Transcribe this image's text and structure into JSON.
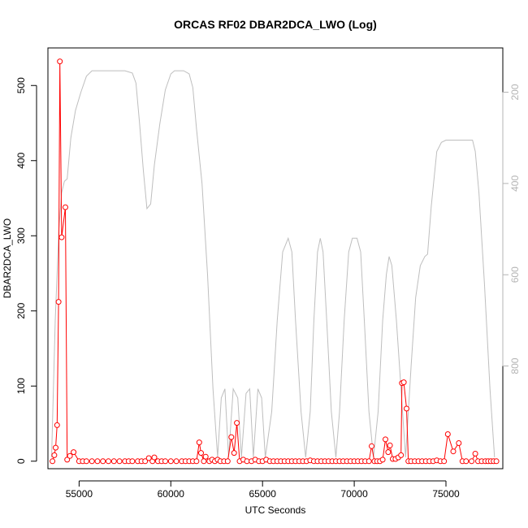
{
  "chart_data": {
    "type": "scatter",
    "title": "ORCAS RF02 DBAR2DCA_LWO (Log)",
    "xlabel": "UTC Seconds",
    "ylabel": "DBAR2DCA_LWO",
    "xlim": [
      53300,
      78100
    ],
    "ylim": [
      -10,
      550
    ],
    "x_ticks": [
      {
        "value": 55000,
        "label": "55000"
      },
      {
        "value": 60000,
        "label": "60000"
      },
      {
        "value": 65000,
        "label": "65000"
      },
      {
        "value": 70000,
        "label": "70000"
      },
      {
        "value": 75000,
        "label": "75000"
      }
    ],
    "y_ticks": [
      {
        "value": 0,
        "label": "0"
      },
      {
        "value": 100,
        "label": "100"
      },
      {
        "value": 200,
        "label": "200"
      },
      {
        "value": 300,
        "label": "300"
      },
      {
        "value": 400,
        "label": "400"
      },
      {
        "value": 500,
        "label": "500"
      }
    ],
    "y2lim": [
      1025,
      103
    ],
    "y2_ticks": [
      {
        "value": 200,
        "label": "200"
      },
      {
        "value": 400,
        "label": "400"
      },
      {
        "value": 600,
        "label": "600"
      },
      {
        "value": 800,
        "label": "800"
      }
    ],
    "colors": {
      "series": "#ff0000",
      "secondary": "#bebebe",
      "right_axis": "#b4b4b4",
      "frame": "#000000"
    },
    "series": [
      {
        "values": [
          [
            53550,
            0
          ],
          [
            53650,
            8
          ],
          [
            53720,
            18
          ],
          [
            53800,
            48
          ],
          [
            53880,
            212
          ],
          [
            53950,
            532
          ],
          [
            54050,
            298
          ],
          [
            54250,
            338
          ],
          [
            54350,
            2
          ],
          [
            54500,
            7
          ],
          [
            54700,
            12
          ],
          [
            55000,
            0
          ],
          [
            55200,
            0
          ],
          [
            55400,
            0
          ],
          [
            55700,
            0
          ],
          [
            56000,
            0
          ],
          [
            56300,
            0
          ],
          [
            56600,
            0
          ],
          [
            56900,
            0
          ],
          [
            57200,
            0
          ],
          [
            57500,
            0
          ],
          [
            57700,
            0
          ],
          [
            57900,
            0
          ],
          [
            58200,
            0
          ],
          [
            58400,
            0
          ],
          [
            58600,
            0
          ],
          [
            58800,
            4
          ],
          [
            59000,
            0
          ],
          [
            59100,
            5
          ],
          [
            59300,
            0
          ],
          [
            59500,
            0
          ],
          [
            59700,
            0
          ],
          [
            60000,
            0
          ],
          [
            60300,
            0
          ],
          [
            60600,
            0
          ],
          [
            60800,
            0
          ],
          [
            61000,
            0
          ],
          [
            61200,
            0
          ],
          [
            61400,
            0
          ],
          [
            61550,
            25
          ],
          [
            61650,
            11
          ],
          [
            61800,
            0
          ],
          [
            61900,
            6
          ],
          [
            62100,
            0
          ],
          [
            62250,
            2
          ],
          [
            62400,
            0
          ],
          [
            62550,
            2
          ],
          [
            62700,
            0
          ],
          [
            62900,
            0
          ],
          [
            63100,
            0
          ],
          [
            63300,
            32
          ],
          [
            63450,
            11
          ],
          [
            63600,
            51
          ],
          [
            63750,
            0
          ],
          [
            63950,
            2
          ],
          [
            64150,
            0
          ],
          [
            64400,
            0
          ],
          [
            64600,
            2
          ],
          [
            64800,
            0
          ],
          [
            65000,
            0
          ],
          [
            65200,
            2
          ],
          [
            65400,
            0
          ],
          [
            65600,
            0
          ],
          [
            65800,
            0
          ],
          [
            66000,
            0
          ],
          [
            66200,
            0
          ],
          [
            66400,
            0
          ],
          [
            66600,
            0
          ],
          [
            66800,
            0
          ],
          [
            67000,
            0
          ],
          [
            67200,
            0
          ],
          [
            67400,
            0
          ],
          [
            67600,
            1
          ],
          [
            67800,
            0
          ],
          [
            68000,
            0
          ],
          [
            68200,
            0
          ],
          [
            68400,
            0
          ],
          [
            68600,
            0
          ],
          [
            68800,
            0
          ],
          [
            69000,
            0
          ],
          [
            69200,
            0
          ],
          [
            69400,
            0
          ],
          [
            69600,
            0
          ],
          [
            69800,
            0
          ],
          [
            70000,
            0
          ],
          [
            70200,
            0
          ],
          [
            70400,
            0
          ],
          [
            70600,
            0
          ],
          [
            70800,
            0
          ],
          [
            70950,
            20
          ],
          [
            71100,
            0
          ],
          [
            71250,
            0
          ],
          [
            71400,
            0
          ],
          [
            71550,
            2
          ],
          [
            71700,
            29
          ],
          [
            71850,
            12
          ],
          [
            71950,
            21
          ],
          [
            72100,
            3
          ],
          [
            72250,
            3
          ],
          [
            72400,
            5
          ],
          [
            72550,
            8
          ],
          [
            72600,
            104
          ],
          [
            72700,
            105
          ],
          [
            72850,
            70
          ],
          [
            72950,
            0
          ],
          [
            73100,
            0
          ],
          [
            73300,
            0
          ],
          [
            73500,
            0
          ],
          [
            73700,
            0
          ],
          [
            73900,
            0
          ],
          [
            74100,
            0
          ],
          [
            74300,
            0
          ],
          [
            74500,
            1
          ],
          [
            74700,
            0
          ],
          [
            74900,
            0
          ],
          [
            75100,
            36
          ],
          [
            75400,
            13
          ],
          [
            75700,
            24
          ],
          [
            75900,
            0
          ],
          [
            76100,
            0
          ],
          [
            76400,
            0
          ],
          [
            76600,
            10
          ],
          [
            76750,
            0
          ],
          [
            76950,
            0
          ],
          [
            77150,
            0
          ],
          [
            77300,
            0
          ],
          [
            77450,
            0
          ],
          [
            77600,
            0
          ],
          [
            77750,
            0
          ]
        ]
      },
      {
        "axis": "right",
        "values": [
          [
            53500,
            1000
          ],
          [
            53700,
            700
          ],
          [
            53900,
            500
          ],
          [
            54050,
            420
          ],
          [
            54200,
            395
          ],
          [
            54350,
            390
          ],
          [
            54550,
            300
          ],
          [
            54800,
            240
          ],
          [
            55100,
            200
          ],
          [
            55400,
            165
          ],
          [
            55700,
            153
          ],
          [
            56000,
            153
          ],
          [
            56500,
            153
          ],
          [
            57000,
            153
          ],
          [
            57500,
            153
          ],
          [
            57900,
            158
          ],
          [
            58100,
            180
          ],
          [
            58300,
            270
          ],
          [
            58500,
            370
          ],
          [
            58700,
            455
          ],
          [
            58900,
            445
          ],
          [
            59100,
            360
          ],
          [
            59400,
            270
          ],
          [
            59700,
            195
          ],
          [
            60000,
            160
          ],
          [
            60200,
            153
          ],
          [
            60700,
            153
          ],
          [
            61000,
            160
          ],
          [
            61200,
            190
          ],
          [
            61400,
            280
          ],
          [
            61700,
            400
          ],
          [
            62000,
            600
          ],
          [
            62300,
            850
          ],
          [
            62550,
            1000
          ],
          [
            62750,
            870
          ],
          [
            62950,
            850
          ],
          [
            63150,
            1000
          ],
          [
            63400,
            850
          ],
          [
            63650,
            870
          ],
          [
            63850,
            1000
          ],
          [
            64100,
            860
          ],
          [
            64300,
            850
          ],
          [
            64500,
            1000
          ],
          [
            64750,
            850
          ],
          [
            64950,
            870
          ],
          [
            65150,
            1000
          ],
          [
            65500,
            900
          ],
          [
            65800,
            700
          ],
          [
            66100,
            550
          ],
          [
            66400,
            520
          ],
          [
            66600,
            550
          ],
          [
            66800,
            700
          ],
          [
            67100,
            900
          ],
          [
            67350,
            1000
          ],
          [
            67600,
            900
          ],
          [
            67800,
            700
          ],
          [
            68000,
            550
          ],
          [
            68150,
            520
          ],
          [
            68300,
            550
          ],
          [
            68500,
            700
          ],
          [
            68750,
            900
          ],
          [
            69000,
            1000
          ],
          [
            69200,
            900
          ],
          [
            69450,
            700
          ],
          [
            69700,
            550
          ],
          [
            69900,
            520
          ],
          [
            70150,
            520
          ],
          [
            70350,
            550
          ],
          [
            70550,
            700
          ],
          [
            70800,
            900
          ],
          [
            71050,
            1000
          ],
          [
            71300,
            900
          ],
          [
            71550,
            700
          ],
          [
            71750,
            600
          ],
          [
            71900,
            560
          ],
          [
            72050,
            580
          ],
          [
            72300,
            700
          ],
          [
            72550,
            850
          ],
          [
            72800,
            1000
          ],
          [
            73100,
            800
          ],
          [
            73350,
            650
          ],
          [
            73600,
            580
          ],
          [
            73850,
            560
          ],
          [
            74000,
            555
          ],
          [
            74200,
            450
          ],
          [
            74500,
            330
          ],
          [
            74750,
            310
          ],
          [
            75000,
            305
          ],
          [
            75500,
            305
          ],
          [
            76000,
            305
          ],
          [
            76450,
            305
          ],
          [
            76600,
            330
          ],
          [
            76800,
            420
          ],
          [
            77100,
            620
          ],
          [
            77400,
            850
          ],
          [
            77650,
            1000
          ]
        ]
      }
    ]
  }
}
